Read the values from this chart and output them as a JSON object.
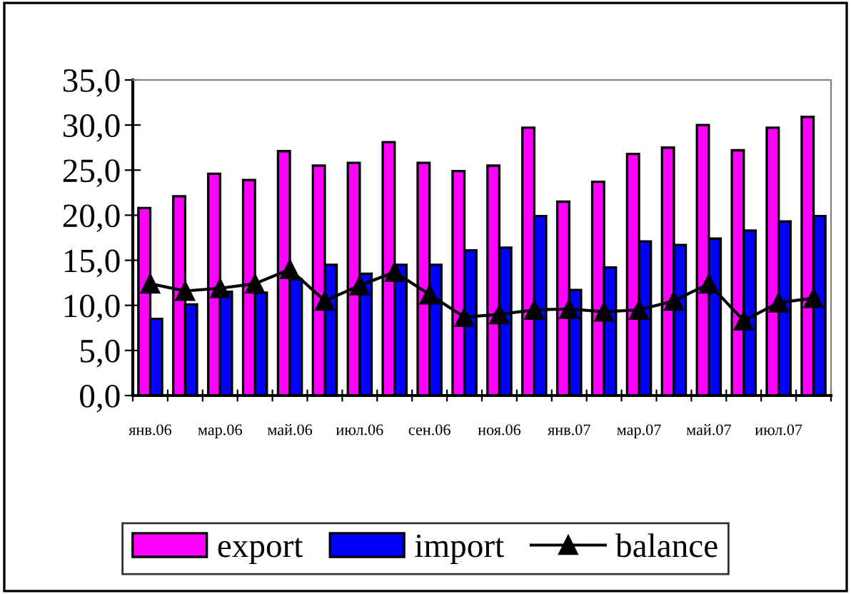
{
  "chart_data": {
    "type": "bar",
    "categories": [
      "янв.06",
      null,
      "мар.06",
      null,
      "май.06",
      null,
      "июл.06",
      null,
      "сен.06",
      null,
      "ноя.06",
      null,
      "янв.07",
      null,
      "мар.07",
      null,
      "май.07",
      null,
      "июл.07",
      null
    ],
    "series": [
      {
        "name": "export",
        "color": "#ff00ff",
        "values": [
          20.8,
          22.1,
          24.6,
          23.9,
          27.1,
          25.5,
          25.8,
          28.1,
          25.8,
          24.9,
          25.5,
          29.7,
          21.5,
          23.7,
          26.8,
          27.5,
          30.0,
          27.2,
          29.7,
          30.9
        ]
      },
      {
        "name": "import",
        "color": "#0000ff",
        "values": [
          8.5,
          10.1,
          11.5,
          11.4,
          12.9,
          14.5,
          13.5,
          14.5,
          14.5,
          16.1,
          16.4,
          19.9,
          11.7,
          14.2,
          17.1,
          16.7,
          17.4,
          18.3,
          19.3,
          19.9
        ]
      },
      {
        "name": "balance",
        "type": "line",
        "color": "#000000",
        "marker": "triangle",
        "values": [
          12.4,
          11.6,
          11.9,
          12.4,
          14.0,
          10.5,
          12.2,
          13.7,
          11.2,
          8.7,
          9.0,
          9.5,
          9.6,
          9.3,
          9.5,
          10.5,
          12.4,
          8.3,
          10.3,
          10.8
        ]
      }
    ],
    "ylim": [
      0,
      35
    ],
    "yticks": [
      {
        "value": 0,
        "label": "0,0"
      },
      {
        "value": 5,
        "label": "5,0"
      },
      {
        "value": 10,
        "label": "10,0"
      },
      {
        "value": 15,
        "label": "15,0"
      },
      {
        "value": 20,
        "label": "20,0"
      },
      {
        "value": 25,
        "label": "25,0"
      },
      {
        "value": 30,
        "label": "30,0"
      },
      {
        "value": 35,
        "label": "35,0"
      }
    ],
    "grid": false,
    "legend": "bottom"
  }
}
